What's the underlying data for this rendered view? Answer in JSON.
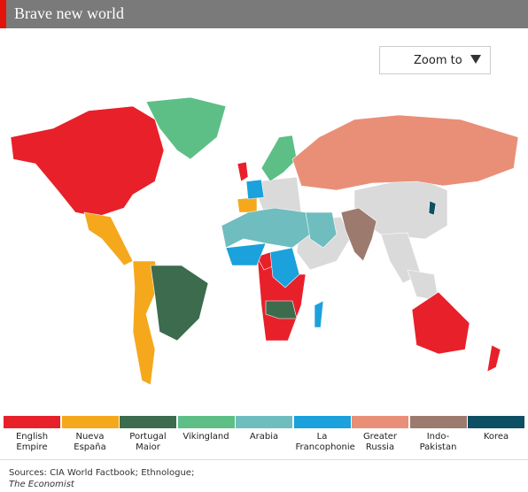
{
  "header": {
    "title": "Brave new world"
  },
  "zoom": {
    "label": "Zoom to"
  },
  "legend": [
    {
      "name": "English Empire",
      "color": "#e8202a"
    },
    {
      "name": "Nueva España",
      "color": "#f5a81c"
    },
    {
      "name": "Portugal Maior",
      "color": "#3c6b4e"
    },
    {
      "name": "Vikingland",
      "color": "#5dbf86"
    },
    {
      "name": "Arabia",
      "color": "#6fbdbf"
    },
    {
      "name": "La Francophonie",
      "color": "#1ba1dc"
    },
    {
      "name": "Greater Russia",
      "color": "#e98f77"
    },
    {
      "name": "Indo-Pakistan",
      "color": "#9c7b6e"
    },
    {
      "name": "Korea",
      "color": "#0f4f63"
    }
  ],
  "sources": {
    "text": "Sources: CIA World Factbook; Ethnologue;",
    "publication": "The Economist"
  }
}
